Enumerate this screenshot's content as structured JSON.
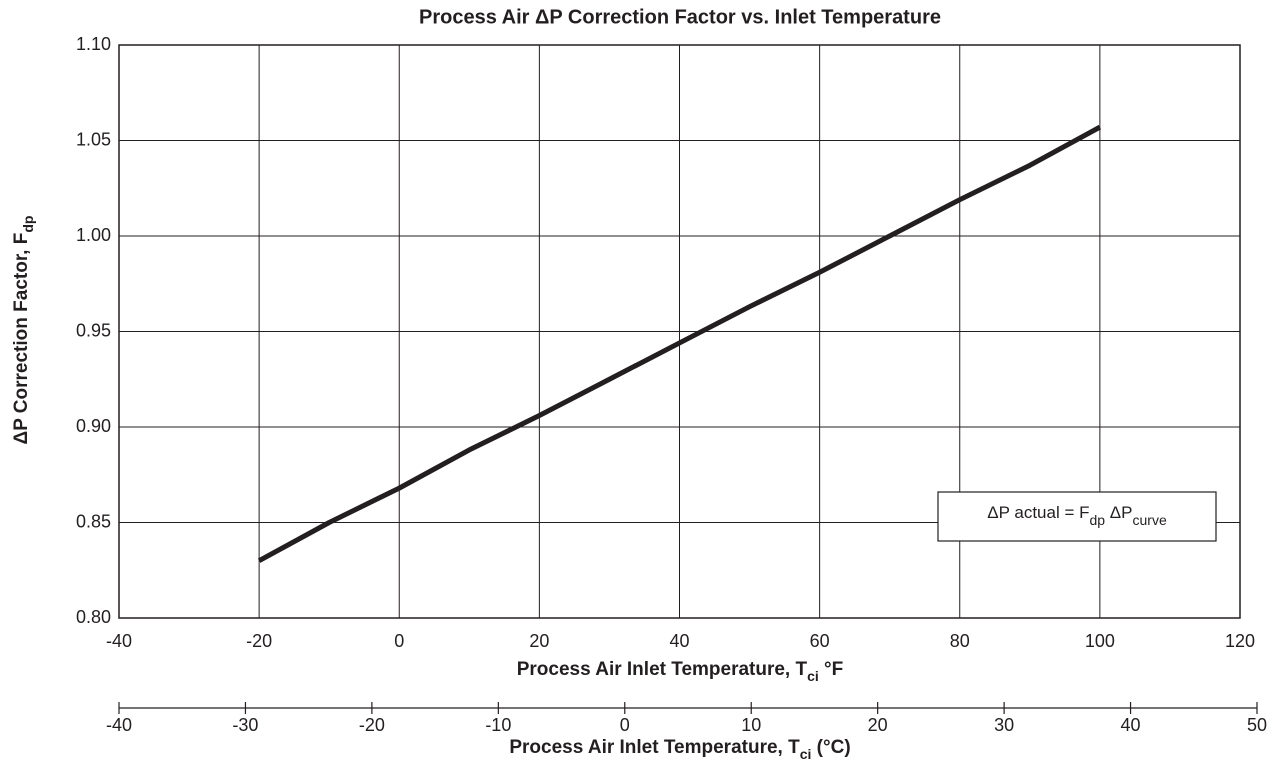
{
  "chart_data": {
    "type": "line",
    "title": "Process Air ΔP Correction Factor vs. Inlet Temperature",
    "ylabel": [
      "ΔP Correction Factor, F",
      "dp"
    ],
    "xlabel": [
      "Process Air Inlet Temperature, T",
      "ci",
      " °F"
    ],
    "x2label": [
      "Process Air Inlet Temperature, T",
      "ci",
      " (°C)"
    ],
    "annotation": [
      "ΔP actual = F",
      "dp",
      "  ΔP",
      "curve"
    ],
    "x": [
      -20,
      -10,
      0,
      10,
      20,
      30,
      40,
      50,
      60,
      70,
      80,
      90,
      100
    ],
    "values": [
      0.83,
      0.85,
      0.868,
      0.888,
      0.906,
      0.925,
      0.944,
      0.963,
      0.981,
      1.0,
      1.019,
      1.037,
      1.057
    ],
    "color": "#231f20",
    "xlim": [
      -40,
      120
    ],
    "xticks": [
      -40,
      -20,
      0,
      20,
      40,
      60,
      80,
      100,
      120
    ],
    "ylim": [
      0.8,
      1.1
    ],
    "yticks": [
      {
        "value": 0.8,
        "label": "0.80"
      },
      {
        "value": 0.85,
        "label": "0.85"
      },
      {
        "value": 0.9,
        "label": "0.90"
      },
      {
        "value": 0.95,
        "label": "0.95"
      },
      {
        "value": 1.0,
        "label": "1.00"
      },
      {
        "value": 1.05,
        "label": "1.05"
      },
      {
        "value": 1.1,
        "label": "1.10"
      }
    ],
    "x2lim": [
      -40,
      50
    ],
    "x2ticks": [
      -40,
      -30,
      -20,
      -10,
      0,
      10,
      20,
      30,
      40,
      50
    ],
    "grid": true
  }
}
